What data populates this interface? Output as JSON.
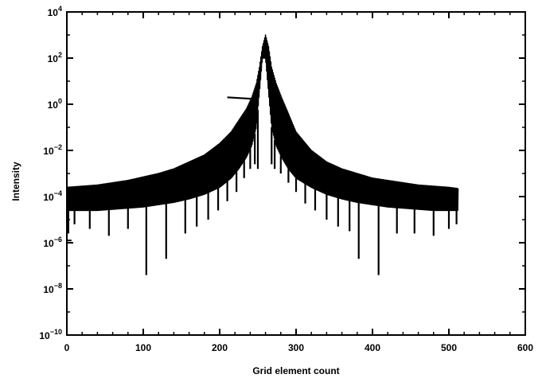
{
  "chart_data": {
    "type": "line",
    "title": "",
    "xlabel": "Grid element count",
    "ylabel": "Intensity",
    "xlim": [
      0,
      600
    ],
    "ylim_log10": [
      -10,
      4
    ],
    "y_scale": "log",
    "grid": false,
    "legend": "none",
    "x_ticks": [
      {
        "value": 0,
        "label": "0"
      },
      {
        "value": 100,
        "label": "100"
      },
      {
        "value": 200,
        "label": "200"
      },
      {
        "value": 300,
        "label": "300"
      },
      {
        "value": 400,
        "label": "400"
      },
      {
        "value": 500,
        "label": "500"
      },
      {
        "value": 600,
        "label": "600"
      }
    ],
    "y_ticks": [
      {
        "exp": 4,
        "base": "10",
        "sup": "4"
      },
      {
        "exp": 2,
        "base": "10",
        "sup": "2"
      },
      {
        "exp": 0,
        "base": "10",
        "sup": "0"
      },
      {
        "exp": -2,
        "base": "10",
        "sup": "−2"
      },
      {
        "exp": -4,
        "base": "10",
        "sup": "−4"
      },
      {
        "exp": -6,
        "base": "10",
        "sup": "−6"
      },
      {
        "exp": -8,
        "base": "10",
        "sup": "−8"
      },
      {
        "exp": -10,
        "base": "10",
        "sup": "−10"
      }
    ],
    "series": [
      {
        "color": "#000000",
        "envelope": {
          "x": [
            0,
            20,
            40,
            60,
            80,
            100,
            120,
            140,
            160,
            180,
            200,
            215,
            225,
            235,
            242,
            248,
            252,
            256,
            260,
            264,
            268,
            274,
            281,
            290,
            300,
            320,
            340,
            360,
            380,
            400,
            420,
            440,
            460,
            480,
            500,
            512
          ],
          "upper_log10": [
            -3.6,
            -3.55,
            -3.5,
            -3.4,
            -3.3,
            -3.15,
            -3.0,
            -2.8,
            -2.5,
            -2.2,
            -1.7,
            -1.2,
            -0.7,
            -0.2,
            0.3,
            0.9,
            1.6,
            2.5,
            3.0,
            2.5,
            1.6,
            0.9,
            0.3,
            -0.4,
            -1.2,
            -2.0,
            -2.5,
            -2.8,
            -3.0,
            -3.2,
            -3.3,
            -3.4,
            -3.5,
            -3.55,
            -3.6,
            -3.65
          ],
          "lower_log10": [
            -4.6,
            -4.6,
            -4.6,
            -4.55,
            -4.5,
            -4.45,
            -4.35,
            -4.25,
            -4.1,
            -3.9,
            -3.6,
            -3.2,
            -2.8,
            -2.3,
            -1.8,
            -1.0,
            0.5,
            2.0,
            2.0,
            0.5,
            -1.0,
            -1.8,
            -2.3,
            -2.8,
            -3.2,
            -3.6,
            -3.9,
            -4.1,
            -4.25,
            -4.35,
            -4.45,
            -4.5,
            -4.55,
            -4.6,
            -4.6,
            -4.6
          ]
        },
        "dips": [
          {
            "x": 2,
            "log10": -5.6
          },
          {
            "x": 10,
            "log10": -5.2
          },
          {
            "x": 30,
            "log10": -5.4
          },
          {
            "x": 55,
            "log10": -5.7
          },
          {
            "x": 80,
            "log10": -5.4
          },
          {
            "x": 104,
            "log10": -7.4
          },
          {
            "x": 130,
            "log10": -6.7
          },
          {
            "x": 155,
            "log10": -5.6
          },
          {
            "x": 170,
            "log10": -5.3
          },
          {
            "x": 185,
            "log10": -5.0
          },
          {
            "x": 198,
            "log10": -4.6
          },
          {
            "x": 210,
            "log10": -4.2
          },
          {
            "x": 222,
            "log10": -3.8
          },
          {
            "x": 232,
            "log10": -3.2
          },
          {
            "x": 240,
            "log10": -2.8
          },
          {
            "x": 246,
            "log10": -2.6
          },
          {
            "x": 250,
            "log10": -2.8
          },
          {
            "x": 268,
            "log10": -2.6
          },
          {
            "x": 272,
            "log10": -2.8
          },
          {
            "x": 280,
            "log10": -3.0
          },
          {
            "x": 290,
            "log10": -3.4
          },
          {
            "x": 300,
            "log10": -3.8
          },
          {
            "x": 312,
            "log10": -4.3
          },
          {
            "x": 325,
            "log10": -4.6
          },
          {
            "x": 340,
            "log10": -5.0
          },
          {
            "x": 355,
            "log10": -5.3
          },
          {
            "x": 370,
            "log10": -5.5
          },
          {
            "x": 382,
            "log10": -6.7
          },
          {
            "x": 408,
            "log10": -7.4
          },
          {
            "x": 432,
            "log10": -5.6
          },
          {
            "x": 455,
            "log10": -5.6
          },
          {
            "x": 480,
            "log10": -5.7
          },
          {
            "x": 500,
            "log10": -5.4
          },
          {
            "x": 510,
            "log10": -5.2
          }
        ],
        "annotation_arrow": {
          "x_from": 210,
          "x_to": 245,
          "log10": 0.3
        }
      }
    ]
  }
}
